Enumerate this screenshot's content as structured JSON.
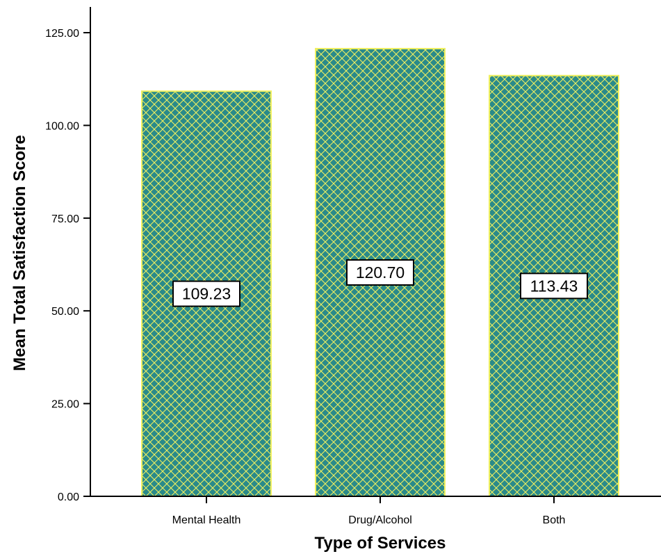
{
  "chart_data": {
    "type": "bar",
    "categories": [
      "Mental Health",
      "Drug/Alcohol",
      "Both"
    ],
    "values": [
      109.23,
      120.7,
      113.43
    ],
    "data_labels": [
      "109.23",
      "120.70",
      "113.43"
    ],
    "title": "",
    "xlabel": "Type of Services",
    "ylabel": "Mean Total Satisfaction Score",
    "ylim": [
      0,
      125
    ],
    "yticks": [
      0,
      25,
      50,
      75,
      100,
      125
    ],
    "ytick_labels": [
      "0.00",
      "25.00",
      "50.00",
      "75.00",
      "100.00",
      "125.00"
    ],
    "grid": false,
    "bar_fill": "#2a8a8a",
    "bar_pattern": "crosshatch",
    "bar_pattern_color": "#f0f060",
    "bar_border": "#f0f060"
  }
}
